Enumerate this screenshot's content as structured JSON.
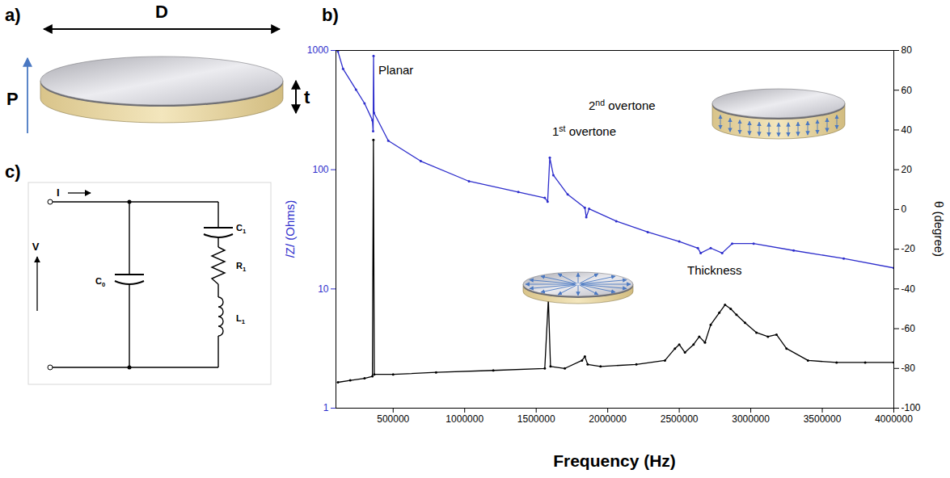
{
  "panel_a": {
    "label": "a)",
    "texts": {
      "diameter": "D",
      "polarization": "P",
      "thickness": "t"
    }
  },
  "chart_data": {
    "panel_label": "b)",
    "type": "line",
    "x_label": "Frequency (Hz)",
    "y_label": "/Z/ (Ohms)",
    "y2_label": "θ (degree)",
    "xlim": [
      100000,
      4000000
    ],
    "xticks": [
      500000,
      1000000,
      1500000,
      2000000,
      2500000,
      3000000,
      3500000,
      4000000
    ],
    "ylim": [
      1,
      1000
    ],
    "yticks": [
      1,
      10,
      100,
      1000
    ],
    "log": "y",
    "y2lim": [
      -100,
      80
    ],
    "y2ticks": [
      -100,
      -80,
      -60,
      -40,
      -20,
      0,
      20,
      40,
      60,
      80
    ],
    "grid": false,
    "annotations": [
      "Planar",
      "1st overtone",
      "2nd overtone",
      "Thickness"
    ],
    "series": [
      {
        "color": "#2e2ecc",
        "marker": "dot",
        "line_style": "solid",
        "x": [
          114000,
          150000,
          240000,
          300000,
          355000,
          360000,
          363000,
          366000,
          466000,
          693000,
          1030000,
          1375000,
          1560000,
          1580000,
          1595000,
          1620000,
          1720000,
          1840000,
          1850000,
          1870000,
          2060000,
          2280000,
          2500000,
          2630000,
          2650000,
          2720000,
          2800000,
          2870000,
          3020000,
          3300000,
          3650000,
          4000000
        ],
        "values": [
          980,
          700,
          470,
          360,
          260,
          210,
          900,
          300,
          175,
          118,
          80,
          65,
          58,
          54,
          126,
          90,
          62,
          48,
          40,
          47,
          37,
          30,
          25,
          22,
          20,
          22,
          20,
          24,
          24,
          21,
          18,
          15
        ]
      },
      {
        "color": "#000000",
        "marker": "dot",
        "line_style": "solid",
        "axis": "y2",
        "x": [
          114000,
          200000,
          300000,
          355000,
          362000,
          368000,
          500000,
          800000,
          1200000,
          1560000,
          1585000,
          1600000,
          1700000,
          1820000,
          1840000,
          1860000,
          1950000,
          2200000,
          2400000,
          2470000,
          2500000,
          2540000,
          2600000,
          2640000,
          2680000,
          2720000,
          2780000,
          2820000,
          2860000,
          2900000,
          2960000,
          3040000,
          3120000,
          3180000,
          3250000,
          3400000,
          3600000,
          3800000,
          4000000
        ],
        "values": [
          -87,
          -86,
          -85,
          -84,
          35,
          -83,
          -83,
          -82,
          -81,
          -80,
          -45,
          -79,
          -80,
          -76,
          -74,
          -78,
          -79,
          -78,
          -76,
          -70,
          -68,
          -72,
          -68,
          -64,
          -67,
          -58,
          -52,
          -48,
          -50,
          -53,
          -57,
          -62,
          -64,
          -63,
          -70,
          -76,
          -77,
          -77,
          -77
        ]
      }
    ]
  },
  "panel_c": {
    "label": "c)",
    "texts": {
      "current": "I",
      "voltage": "V",
      "static_capacitance": "C0",
      "motional_capacitance": "C1",
      "motional_resistance": "R1",
      "motional_inductance": "L1"
    }
  }
}
